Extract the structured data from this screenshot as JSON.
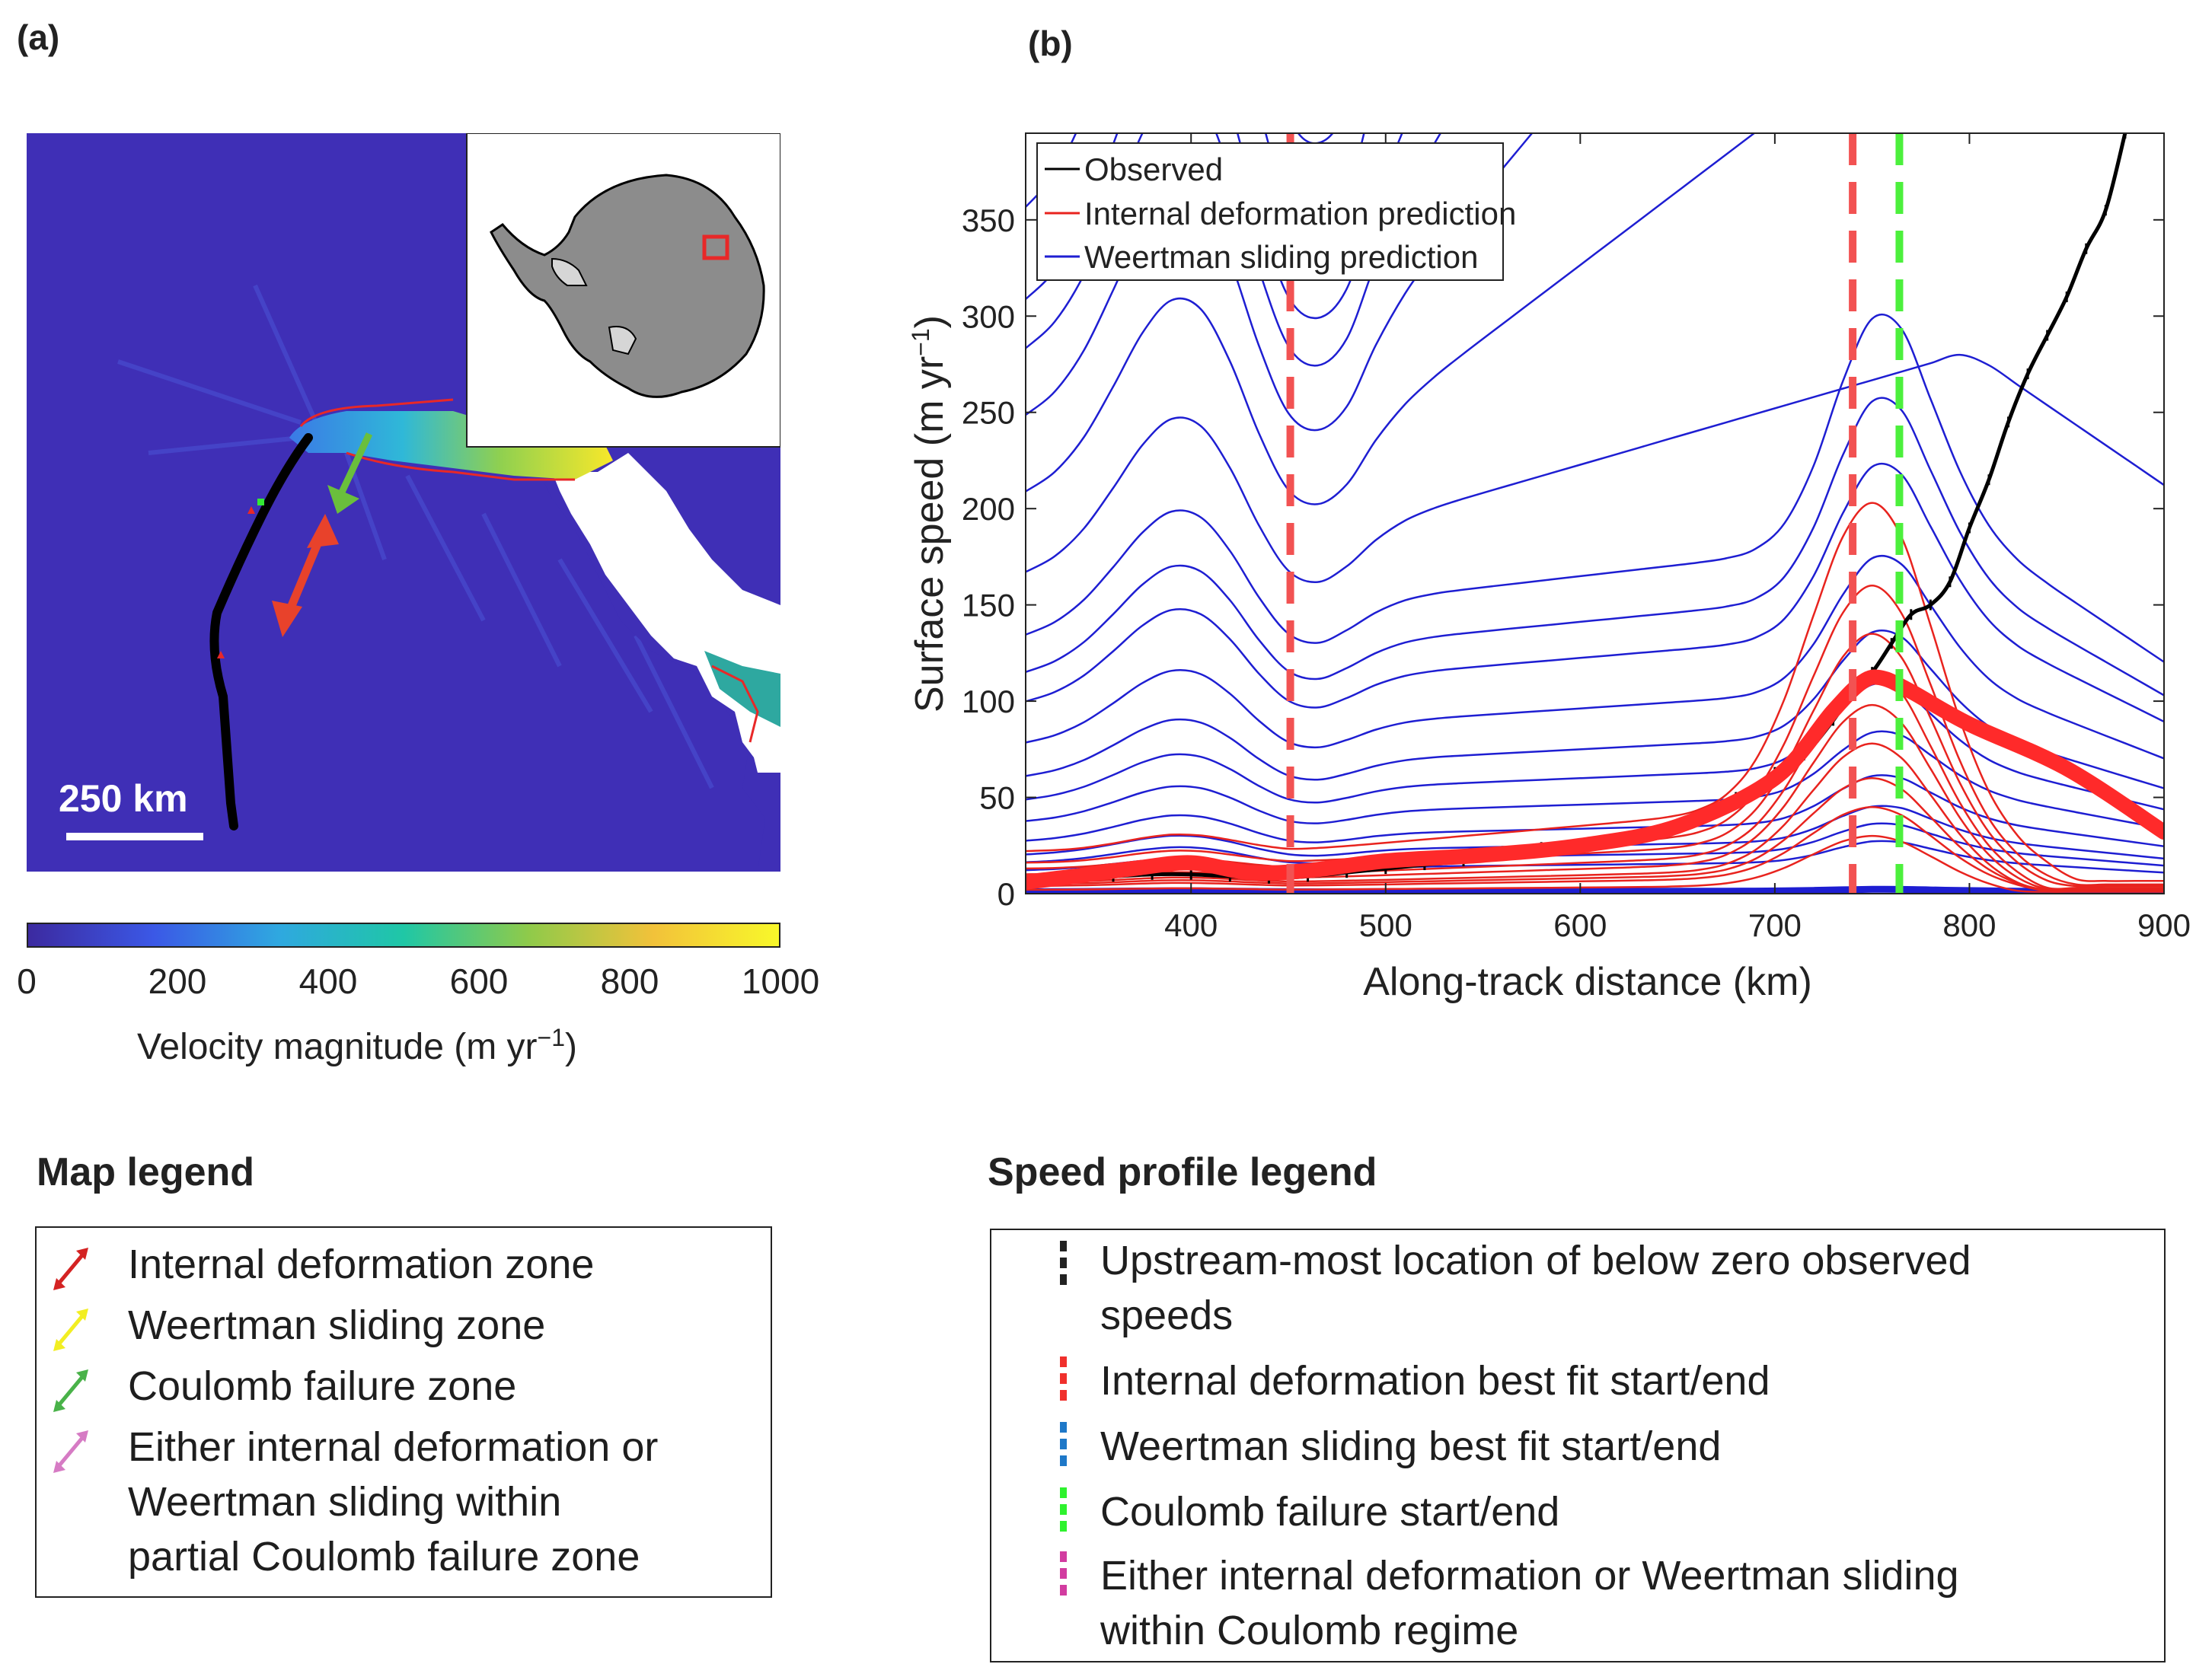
{
  "panel_a": {
    "label": "(a)",
    "scale_bar": "250 km",
    "colorbar": {
      "ticks": [
        "0",
        "200",
        "400",
        "600",
        "800",
        "1000"
      ],
      "label_main": "Velocity magnitude (m yr",
      "label_exp": "−1",
      "label_close": ")",
      "colors": [
        "#3c2aa0",
        "#3b58e6",
        "#2fa8e0",
        "#1fc7a6",
        "#8fca4a",
        "#f2c23a",
        "#f8f82a"
      ]
    }
  },
  "panel_b": {
    "label": "(b)"
  },
  "chart_data": {
    "type": "line",
    "xlabel": "Along-track distance (km)",
    "ylabel_main": "Surface speed (m yr",
    "ylabel_exp": "−1",
    "ylabel_close": ")",
    "xlim": [
      315,
      900
    ],
    "ylim": [
      0,
      395
    ],
    "xticks": [
      400,
      500,
      600,
      700,
      800,
      900
    ],
    "yticks": [
      0,
      50,
      100,
      150,
      200,
      250,
      300,
      350
    ],
    "legend": [
      {
        "label": "Observed",
        "color": "#000000"
      },
      {
        "label": "Internal deformation prediction",
        "color": "#e8231e"
      },
      {
        "label": "Weertman sliding prediction",
        "color": "#1e1ed2"
      }
    ],
    "colors": {
      "observed": "#000000",
      "internal": "#e8231e",
      "weertman": "#1e1ed2",
      "best_fit": "#ff2a2a",
      "dash_red": "#f25252",
      "dash_green": "#4cf03c"
    },
    "vertical_lines": [
      {
        "x": 451,
        "color": "#f25252"
      },
      {
        "x": 740,
        "color": "#f25252"
      },
      {
        "x": 764,
        "color": "#4cf03c"
      }
    ],
    "observed": {
      "x": [
        315,
        340,
        360,
        380,
        400,
        420,
        440,
        460,
        480,
        500,
        520,
        540,
        560,
        580,
        600,
        620,
        640,
        660,
        680,
        700,
        715,
        730,
        740,
        750,
        760,
        770,
        780,
        790,
        800,
        810,
        820,
        830,
        840,
        850,
        860,
        870,
        880
      ],
      "y": [
        6,
        8,
        9,
        10,
        10,
        9,
        8,
        9,
        11,
        13,
        15,
        17,
        22,
        24,
        25,
        28,
        33,
        40,
        50,
        63,
        72,
        90,
        105,
        115,
        130,
        145,
        150,
        162,
        190,
        215,
        245,
        270,
        290,
        310,
        335,
        355,
        395
      ]
    },
    "best_fit_internal": {
      "x": [
        315,
        340,
        370,
        400,
        430,
        460,
        500,
        550,
        600,
        650,
        700,
        730,
        745,
        755,
        770,
        800,
        850,
        900
      ],
      "y": [
        6,
        9,
        13,
        16,
        11,
        12,
        17,
        20,
        25,
        35,
        60,
        95,
        110,
        112,
        105,
        88,
        65,
        32
      ]
    },
    "internal_predictions": [
      {
        "peak": 203,
        "base": 22
      },
      {
        "peak": 160,
        "base": 16
      },
      {
        "peak": 135,
        "base": 13
      },
      {
        "peak": 115,
        "base": 10
      },
      {
        "peak": 98,
        "base": 8
      },
      {
        "peak": 78,
        "base": 6
      },
      {
        "peak": 60,
        "base": 5
      },
      {
        "peak": 45,
        "base": 4
      },
      {
        "peak": 30,
        "base": 2
      }
    ],
    "weertman_predictions": [
      {
        "base": 395
      },
      {
        "base": 350
      },
      {
        "base": 303
      },
      {
        "base": 278
      },
      {
        "base": 244
      },
      {
        "base": 205
      },
      {
        "base": 164
      },
      {
        "base": 132
      },
      {
        "base": 113
      },
      {
        "base": 98
      },
      {
        "base": 77
      },
      {
        "base": 60
      },
      {
        "base": 48
      },
      {
        "base": 37
      },
      {
        "base": 27
      },
      {
        "base": 20
      },
      {
        "base": 16
      },
      {
        "base": 12
      },
      {
        "base": 1
      }
    ]
  },
  "map_legend": {
    "title": "Map legend",
    "items": [
      {
        "lines": [
          "Internal deformation zone"
        ],
        "color": "#d42323"
      },
      {
        "lines": [
          "Weertman sliding zone"
        ],
        "color": "#f2ee22"
      },
      {
        "lines": [
          "Coulomb failure zone"
        ],
        "color": "#49b249"
      },
      {
        "lines": [
          "Either internal deformation or",
          "Weertman sliding within",
          "partial Coulomb failure zone"
        ],
        "color": "#d67bc4"
      }
    ]
  },
  "speed_legend": {
    "title": "Speed profile legend",
    "items": [
      {
        "lines": [
          "Upstream-most location of below zero observed",
          "speeds"
        ],
        "color": "#222222"
      },
      {
        "lines": [
          "Internal deformation best fit start/end"
        ],
        "color": "#f0302c"
      },
      {
        "lines": [
          "Weertman sliding best fit start/end"
        ],
        "color": "#1e78c8"
      },
      {
        "lines": [
          "Coulomb failure start/end"
        ],
        "color": "#2ef22e"
      },
      {
        "lines": [
          "Either internal deformation or Weertman sliding",
          "within Coulomb regime"
        ],
        "color": "#d23ca0"
      }
    ]
  }
}
